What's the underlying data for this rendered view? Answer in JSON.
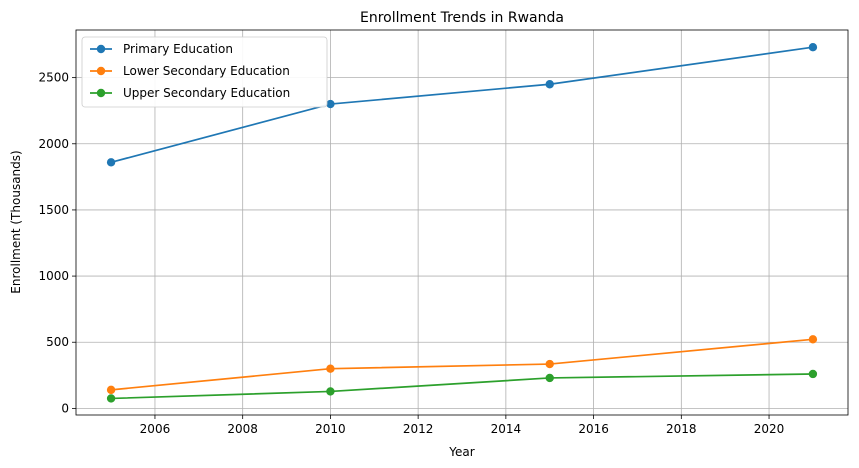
{
  "chart_data": {
    "type": "line",
    "title": "Enrollment Trends in Rwanda",
    "xlabel": "Year",
    "ylabel": "Enrollment (Thousands)",
    "x": [
      2005,
      2010,
      2015,
      2021
    ],
    "xlim": [
      2004.2,
      2021.8
    ],
    "ylim": [
      -50,
      2860
    ],
    "xticks": [
      2006,
      2008,
      2010,
      2012,
      2014,
      2016,
      2018,
      2020
    ],
    "yticks": [
      0,
      500,
      1000,
      1500,
      2000,
      2500
    ],
    "grid": true,
    "legend_position": "top-left",
    "series": [
      {
        "name": "Primary Education",
        "color": "#1f77b4",
        "values": [
          1860,
          2300,
          2450,
          2730
        ]
      },
      {
        "name": "Lower Secondary Education",
        "color": "#ff7f0e",
        "values": [
          140,
          300,
          335,
          522
        ]
      },
      {
        "name": "Upper Secondary Education",
        "color": "#2ca02c",
        "values": [
          75,
          128,
          230,
          260
        ]
      }
    ]
  }
}
